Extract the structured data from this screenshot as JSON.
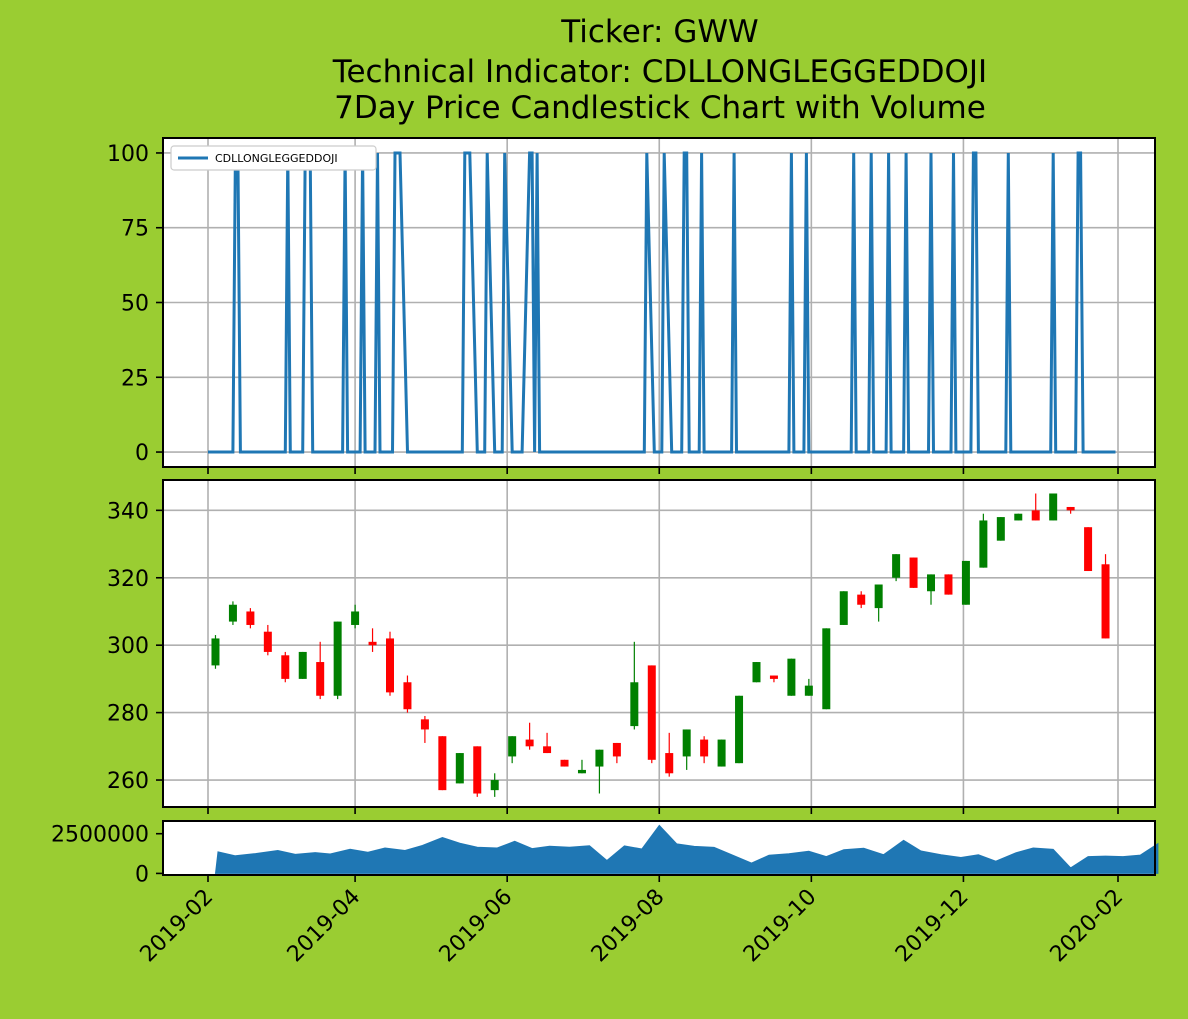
{
  "background_color": "#9acd32",
  "title_lines": [
    "Ticker: GWW",
    "Technical Indicator: CDLLONGLEGGEDDOJI",
    "7Day Price Candlestick Chart with Volume"
  ],
  "chart_data": {
    "type": "candlestick",
    "x_tick_labels": [
      "2019-02",
      "2019-04",
      "2019-06",
      "2019-08",
      "2019-10",
      "2019-12",
      "2020-02"
    ],
    "indicator": {
      "series_name": "CDLLONGLEGGEDDOJI",
      "color": "#1f77b4",
      "ylim": [
        -5,
        105
      ],
      "yticks": [
        0,
        25,
        50,
        75,
        100
      ],
      "legend_loc": "upper left",
      "points": [
        [
          "2019-02-01",
          0
        ],
        [
          "2019-02-11",
          0
        ],
        [
          "2019-02-12",
          100
        ],
        [
          "2019-02-13",
          100
        ],
        [
          "2019-02-14",
          0
        ],
        [
          "2019-03-04",
          0
        ],
        [
          "2019-03-05",
          100
        ],
        [
          "2019-03-06",
          0
        ],
        [
          "2019-03-11",
          0
        ],
        [
          "2019-03-12",
          100
        ],
        [
          "2019-03-14",
          100
        ],
        [
          "2019-03-15",
          0
        ],
        [
          "2019-03-27",
          0
        ],
        [
          "2019-03-28",
          100
        ],
        [
          "2019-03-29",
          0
        ],
        [
          "2019-04-03",
          0
        ],
        [
          "2019-04-04",
          100
        ],
        [
          "2019-04-05",
          0
        ],
        [
          "2019-04-09",
          0
        ],
        [
          "2019-04-10",
          100
        ],
        [
          "2019-04-11",
          0
        ],
        [
          "2019-04-16",
          0
        ],
        [
          "2019-04-17",
          100
        ],
        [
          "2019-04-19",
          100
        ],
        [
          "2019-04-22",
          0
        ],
        [
          "2019-05-14",
          0
        ],
        [
          "2019-05-15",
          100
        ],
        [
          "2019-05-17",
          100
        ],
        [
          "2019-05-20",
          0
        ],
        [
          "2019-05-23",
          0
        ],
        [
          "2019-05-24",
          100
        ],
        [
          "2019-05-27",
          0
        ],
        [
          "2019-05-30",
          0
        ],
        [
          "2019-05-31",
          100
        ],
        [
          "2019-06-03",
          0
        ],
        [
          "2019-06-07",
          0
        ],
        [
          "2019-06-10",
          100
        ],
        [
          "2019-06-11",
          100
        ],
        [
          "2019-06-12",
          0
        ],
        [
          "2019-06-13",
          100
        ],
        [
          "2019-06-14",
          0
        ],
        [
          "2019-07-26",
          0
        ],
        [
          "2019-07-27",
          100
        ],
        [
          "2019-07-30",
          0
        ],
        [
          "2019-08-02",
          0
        ],
        [
          "2019-08-03",
          100
        ],
        [
          "2019-08-06",
          0
        ],
        [
          "2019-08-10",
          0
        ],
        [
          "2019-08-11",
          100
        ],
        [
          "2019-08-12",
          100
        ],
        [
          "2019-08-13",
          0
        ],
        [
          "2019-08-17",
          0
        ],
        [
          "2019-08-18",
          100
        ],
        [
          "2019-08-19",
          0
        ],
        [
          "2019-08-30",
          0
        ],
        [
          "2019-08-31",
          100
        ],
        [
          "2019-09-01",
          0
        ],
        [
          "2019-09-22",
          0
        ],
        [
          "2019-09-23",
          100
        ],
        [
          "2019-09-24",
          0
        ],
        [
          "2019-09-28",
          0
        ],
        [
          "2019-09-29",
          100
        ],
        [
          "2019-09-30",
          0
        ],
        [
          "2019-10-17",
          0
        ],
        [
          "2019-10-18",
          100
        ],
        [
          "2019-10-19",
          0
        ],
        [
          "2019-10-24",
          0
        ],
        [
          "2019-10-25",
          100
        ],
        [
          "2019-10-26",
          0
        ],
        [
          "2019-10-31",
          0
        ],
        [
          "2019-11-01",
          100
        ],
        [
          "2019-11-02",
          0
        ],
        [
          "2019-11-07",
          0
        ],
        [
          "2019-11-08",
          100
        ],
        [
          "2019-11-09",
          0
        ],
        [
          "2019-11-17",
          0
        ],
        [
          "2019-11-18",
          100
        ],
        [
          "2019-11-19",
          0
        ],
        [
          "2019-11-26",
          0
        ],
        [
          "2019-11-27",
          100
        ],
        [
          "2019-11-28",
          0
        ],
        [
          "2019-12-04",
          0
        ],
        [
          "2019-12-05",
          100
        ],
        [
          "2019-12-06",
          100
        ],
        [
          "2019-12-07",
          0
        ],
        [
          "2019-12-18",
          0
        ],
        [
          "2019-12-19",
          100
        ],
        [
          "2019-12-20",
          0
        ],
        [
          "2020-01-05",
          0
        ],
        [
          "2020-01-06",
          100
        ],
        [
          "2020-01-07",
          0
        ],
        [
          "2020-01-15",
          0
        ],
        [
          "2020-01-16",
          100
        ],
        [
          "2020-01-17",
          100
        ],
        [
          "2020-01-18",
          0
        ],
        [
          "2020-01-31",
          0
        ]
      ]
    },
    "price": {
      "ylim": [
        252,
        349
      ],
      "yticks": [
        260,
        280,
        300,
        320,
        340
      ],
      "up_color": "green",
      "down_color": "red",
      "candles": [
        [
          "2019-02-04",
          294,
          302,
          293,
          303
        ],
        [
          "2019-02-11",
          307,
          312,
          306,
          313
        ],
        [
          "2019-02-18",
          310,
          306,
          305,
          311
        ],
        [
          "2019-02-25",
          304,
          298,
          297,
          306
        ],
        [
          "2019-03-04",
          297,
          290,
          289,
          298
        ],
        [
          "2019-03-11",
          290,
          298,
          290,
          298
        ],
        [
          "2019-03-18",
          295,
          285,
          284,
          301
        ],
        [
          "2019-03-25",
          285,
          307,
          284,
          307
        ],
        [
          "2019-04-01",
          306,
          310,
          305,
          312
        ],
        [
          "2019-04-08",
          301,
          300,
          298,
          305
        ],
        [
          "2019-04-15",
          302,
          286,
          285,
          304
        ],
        [
          "2019-04-22",
          289,
          281,
          280,
          291
        ],
        [
          "2019-04-29",
          278,
          275,
          271,
          279
        ],
        [
          "2019-05-06",
          273,
          257,
          257,
          273
        ],
        [
          "2019-05-13",
          259,
          268,
          259,
          268
        ],
        [
          "2019-05-20",
          270,
          256,
          255,
          270
        ],
        [
          "2019-05-27",
          257,
          260,
          255,
          262
        ],
        [
          "2019-06-03",
          267,
          273,
          265,
          273
        ],
        [
          "2019-06-10",
          272,
          270,
          269,
          277
        ],
        [
          "2019-06-17",
          270,
          268,
          268,
          274
        ],
        [
          "2019-06-24",
          266,
          264,
          264,
          266
        ],
        [
          "2019-07-01",
          262,
          263,
          262,
          266
        ],
        [
          "2019-07-08",
          264,
          269,
          256,
          269
        ],
        [
          "2019-07-15",
          271,
          267,
          265,
          271
        ],
        [
          "2019-07-22",
          276,
          289,
          275,
          301
        ],
        [
          "2019-07-29",
          294,
          266,
          265,
          294
        ],
        [
          "2019-08-05",
          268,
          262,
          261,
          274
        ],
        [
          "2019-08-12",
          267,
          275,
          263,
          275
        ],
        [
          "2019-08-19",
          272,
          267,
          265,
          273
        ],
        [
          "2019-08-26",
          264,
          272,
          264,
          272
        ],
        [
          "2019-09-02",
          265,
          285,
          265,
          285
        ],
        [
          "2019-09-09",
          289,
          295,
          289,
          295
        ],
        [
          "2019-09-16",
          291,
          290,
          289,
          291
        ],
        [
          "2019-09-23",
          285,
          296,
          285,
          296
        ],
        [
          "2019-09-30",
          285,
          288,
          285,
          290
        ],
        [
          "2019-10-07",
          281,
          305,
          281,
          305
        ],
        [
          "2019-10-14",
          306,
          316,
          306,
          316
        ],
        [
          "2019-10-21",
          315,
          312,
          311,
          316
        ],
        [
          "2019-10-28",
          311,
          318,
          307,
          318
        ],
        [
          "2019-11-04",
          320,
          327,
          319,
          327
        ],
        [
          "2019-11-11",
          326,
          317,
          317,
          326
        ],
        [
          "2019-11-18",
          316,
          321,
          312,
          321
        ],
        [
          "2019-11-25",
          321,
          315,
          315,
          321
        ],
        [
          "2019-12-02",
          312,
          325,
          312,
          325
        ],
        [
          "2019-12-09",
          323,
          337,
          323,
          339
        ],
        [
          "2019-12-16",
          331,
          338,
          331,
          338
        ],
        [
          "2019-12-23",
          337,
          339,
          337,
          339
        ],
        [
          "2019-12-30",
          340,
          337,
          337,
          345
        ],
        [
          "2020-01-06",
          337,
          345,
          337,
          345
        ],
        [
          "2020-01-13",
          341,
          340,
          339,
          341
        ],
        [
          "2020-01-20",
          335,
          322,
          322,
          335
        ],
        [
          "2020-01-27",
          324,
          302,
          302,
          327
        ]
      ]
    },
    "volume": {
      "ylim": [
        -100000,
        3300000
      ],
      "yticks": [
        0,
        2500000
      ],
      "color": "#1f77b4",
      "points": [
        [
          "2019-02-04",
          0
        ],
        [
          "2019-02-05",
          1360000
        ],
        [
          "2019-02-12",
          1110000
        ],
        [
          "2019-02-20",
          1250000
        ],
        [
          "2019-03-01",
          1440000
        ],
        [
          "2019-03-08",
          1200000
        ],
        [
          "2019-03-16",
          1310000
        ],
        [
          "2019-03-22",
          1220000
        ],
        [
          "2019-03-30",
          1520000
        ],
        [
          "2019-04-06",
          1330000
        ],
        [
          "2019-04-13",
          1600000
        ],
        [
          "2019-04-21",
          1440000
        ],
        [
          "2019-04-28",
          1760000
        ],
        [
          "2019-05-06",
          2260000
        ],
        [
          "2019-05-13",
          1900000
        ],
        [
          "2019-05-20",
          1650000
        ],
        [
          "2019-05-28",
          1600000
        ],
        [
          "2019-06-04",
          2020000
        ],
        [
          "2019-06-11",
          1560000
        ],
        [
          "2019-06-18",
          1710000
        ],
        [
          "2019-06-26",
          1650000
        ],
        [
          "2019-07-04",
          1740000
        ],
        [
          "2019-07-11",
          810000
        ],
        [
          "2019-07-18",
          1730000
        ],
        [
          "2019-07-25",
          1540000
        ],
        [
          "2019-08-01",
          3020000
        ],
        [
          "2019-08-08",
          1860000
        ],
        [
          "2019-08-15",
          1700000
        ],
        [
          "2019-08-23",
          1640000
        ],
        [
          "2019-08-30",
          1180000
        ],
        [
          "2019-09-07",
          650000
        ],
        [
          "2019-09-14",
          1140000
        ],
        [
          "2019-09-22",
          1240000
        ],
        [
          "2019-09-30",
          1390000
        ],
        [
          "2019-10-07",
          1060000
        ],
        [
          "2019-10-14",
          1490000
        ],
        [
          "2019-10-22",
          1590000
        ],
        [
          "2019-10-30",
          1180000
        ],
        [
          "2019-11-07",
          2080000
        ],
        [
          "2019-11-14",
          1410000
        ],
        [
          "2019-11-22",
          1180000
        ],
        [
          "2019-11-30",
          1000000
        ],
        [
          "2019-12-07",
          1170000
        ],
        [
          "2019-12-14",
          770000
        ],
        [
          "2019-12-22",
          1300000
        ],
        [
          "2019-12-29",
          1600000
        ],
        [
          "2020-01-06",
          1520000
        ],
        [
          "2020-01-13",
          350000
        ],
        [
          "2020-01-20",
          1060000
        ],
        [
          "2020-01-27",
          1090000
        ],
        [
          "2020-02-03",
          1060000
        ],
        [
          "2020-02-10",
          1150000
        ],
        [
          "2020-02-17",
          1870000
        ],
        [
          "2020-02-17",
          0
        ]
      ]
    }
  }
}
